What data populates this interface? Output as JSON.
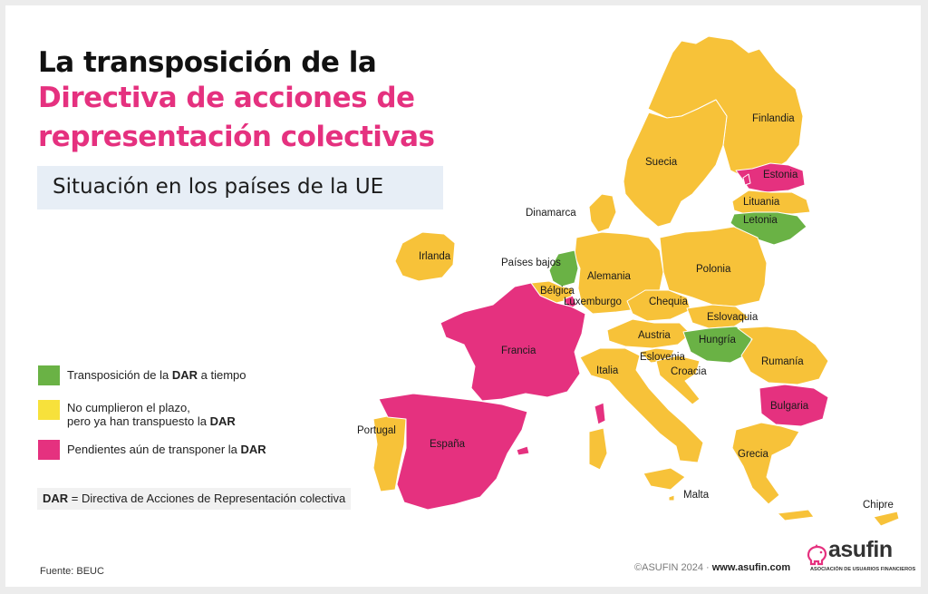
{
  "title_lines": [
    "La transposición de la",
    "Directiva de acciones de",
    "representación colectivas"
  ],
  "subtitle": "Situación en los países de la UE",
  "colors": {
    "on_time": "#6ab245",
    "late_transposed": "#f7c239",
    "pending": "#e5317f",
    "title_black": "#111111",
    "title_pink": "#e5317f",
    "subtitle_bg": "#e7eef6"
  },
  "legend": [
    {
      "status": "on_time",
      "color": "#6ab245",
      "text_before": "Transposición de la ",
      "bold": "DAR",
      "text_after": " a tiempo"
    },
    {
      "status": "late_transposed",
      "color": "#f7e13b",
      "line1": "No cumplieron el plazo,",
      "line2_before": "pero ya han transpuesto la ",
      "bold": "DAR"
    },
    {
      "status": "pending",
      "color": "#e5317f",
      "text_before": "Pendientes aún de transponer la ",
      "bold": "DAR"
    }
  ],
  "definition": {
    "abbr": "DAR",
    "text": " = Directiva de Acciones de Representación colectiva"
  },
  "countries": [
    {
      "name": "Finlandia",
      "status": "late_transposed"
    },
    {
      "name": "Suecia",
      "status": "late_transposed"
    },
    {
      "name": "Estonia",
      "status": "pending"
    },
    {
      "name": "Lituania",
      "status": "late_transposed"
    },
    {
      "name": "Letonia",
      "status": "on_time"
    },
    {
      "name": "Dinamarca",
      "status": "late_transposed"
    },
    {
      "name": "Irlanda",
      "status": "late_transposed"
    },
    {
      "name": "Países bajos",
      "status": "on_time"
    },
    {
      "name": "Alemania",
      "status": "late_transposed"
    },
    {
      "name": "Polonia",
      "status": "late_transposed"
    },
    {
      "name": "Bélgica",
      "status": "late_transposed"
    },
    {
      "name": "Luxemburgo",
      "status": "pending"
    },
    {
      "name": "Chequia",
      "status": "late_transposed"
    },
    {
      "name": "Eslovaquia",
      "status": "late_transposed"
    },
    {
      "name": "Francia",
      "status": "pending"
    },
    {
      "name": "Austria",
      "status": "late_transposed"
    },
    {
      "name": "Hungría",
      "status": "on_time"
    },
    {
      "name": "Eslovenia",
      "status": "late_transposed"
    },
    {
      "name": "Rumanía",
      "status": "late_transposed"
    },
    {
      "name": "Italia",
      "status": "late_transposed"
    },
    {
      "name": "Croacia",
      "status": "late_transposed"
    },
    {
      "name": "Bulgaria",
      "status": "pending"
    },
    {
      "name": "Portugal",
      "status": "late_transposed"
    },
    {
      "name": "España",
      "status": "pending"
    },
    {
      "name": "Grecia",
      "status": "late_transposed"
    },
    {
      "name": "Malta",
      "status": "late_transposed"
    },
    {
      "name": "Chipre",
      "status": "late_transposed"
    }
  ],
  "source": "Fuente: BEUC",
  "footer": {
    "copyright": "©ASUFIN 2024 · ",
    "url": "www.asufin.com"
  },
  "logo": {
    "word": "asufin",
    "tagline": "ASOCIACIÓN DE USUARIOS FINANCIEROS",
    "icon": "piggy-bank-icon"
  }
}
